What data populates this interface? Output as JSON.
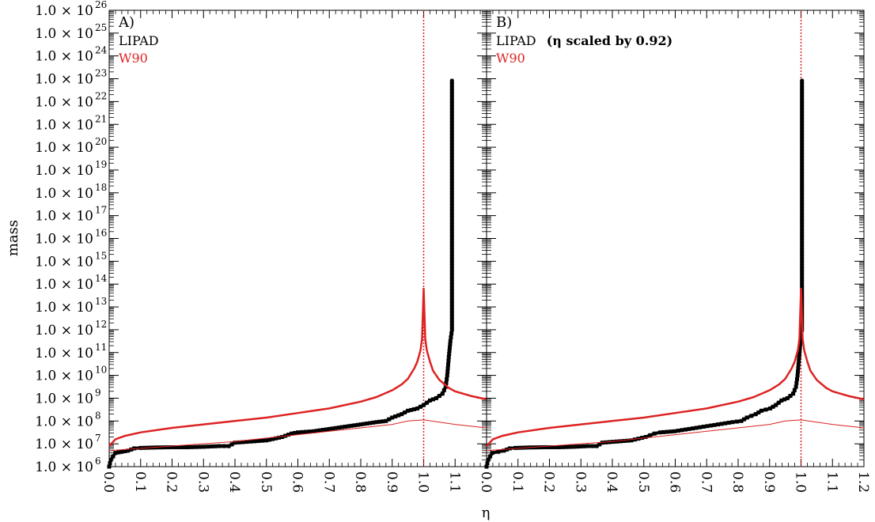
{
  "chart_data": [
    {
      "panel": "A",
      "type": "line",
      "title": "",
      "xlabel": "η",
      "ylabel": "mass",
      "xlim": [
        0.0,
        1.2
      ],
      "ylim_log10": [
        6,
        26
      ],
      "y_scale": "log",
      "grid": false,
      "legend_placement": "top-left",
      "panel_label": "A)",
      "legend": [
        {
          "label": "LIPAD",
          "color": "#000000"
        },
        {
          "label": "W90",
          "color": "#dd2222"
        }
      ],
      "x_tick_labels": [
        "0.0",
        "0.1",
        "0.2",
        "0.3",
        "0.4",
        "0.5",
        "0.6",
        "0.7",
        "0.8",
        "0.9",
        "1.0",
        "1.1"
      ],
      "y_tick_labels": [
        {
          "base": "1.0 × 10",
          "exp": "6"
        },
        {
          "base": "1.0 × 10",
          "exp": "7"
        },
        {
          "base": "1.0 × 10",
          "exp": "8"
        },
        {
          "base": "1.0 × 10",
          "exp": "9"
        },
        {
          "base": "1.0 × 10",
          "exp": "10"
        },
        {
          "base": "1.0 × 10",
          "exp": "11"
        },
        {
          "base": "1.0 × 10",
          "exp": "12"
        },
        {
          "base": "1.0 × 10",
          "exp": "13"
        },
        {
          "base": "1.0 × 10",
          "exp": "14"
        },
        {
          "base": "1.0 × 10",
          "exp": "15"
        },
        {
          "base": "1.0 × 10",
          "exp": "16"
        },
        {
          "base": "1.0 × 10",
          "exp": "17"
        },
        {
          "base": "1.0 × 10",
          "exp": "18"
        },
        {
          "base": "1.0 × 10",
          "exp": "19"
        },
        {
          "base": "1.0 × 10",
          "exp": "20"
        },
        {
          "base": "1.0 × 10",
          "exp": "21"
        },
        {
          "base": "1.0 × 10",
          "exp": "22"
        },
        {
          "base": "1.0 × 10",
          "exp": "23"
        },
        {
          "base": "1.0 × 10",
          "exp": "24"
        },
        {
          "base": "1.0 × 10",
          "exp": "25"
        },
        {
          "base": "1.0 × 10",
          "exp": "26"
        }
      ],
      "reference_line": {
        "x": 1.0,
        "color": "#dd2222",
        "style": "dotted"
      },
      "series": [
        {
          "name": "LIPAD",
          "color": "#000000",
          "style": "thick-markers",
          "x": [
            0.0,
            0.005,
            0.02,
            0.04,
            0.06,
            0.08,
            0.1,
            0.15,
            0.2,
            0.25,
            0.3,
            0.35,
            0.38,
            0.4,
            0.45,
            0.5,
            0.55,
            0.58,
            0.6,
            0.65,
            0.7,
            0.75,
            0.8,
            0.85,
            0.88,
            0.9,
            0.93,
            0.95,
            0.98,
            1.0,
            1.02,
            1.04,
            1.06,
            1.07,
            1.075,
            1.08,
            1.085,
            1.09,
            1.09
          ],
          "log10_y": [
            6.0,
            6.3,
            6.6,
            6.65,
            6.7,
            6.8,
            6.82,
            6.84,
            6.85,
            6.85,
            6.87,
            6.9,
            6.9,
            7.05,
            7.1,
            7.15,
            7.3,
            7.45,
            7.5,
            7.55,
            7.65,
            7.75,
            7.85,
            7.95,
            8.0,
            8.15,
            8.3,
            8.45,
            8.55,
            8.7,
            8.9,
            9.0,
            9.2,
            9.5,
            10.0,
            10.8,
            11.5,
            12.0,
            23.0
          ]
        },
        {
          "name": "W90",
          "color": "#dd2222",
          "style": "thick-line",
          "function": "cumulative",
          "x": [
            0.0,
            0.02,
            0.05,
            0.1,
            0.2,
            0.3,
            0.4,
            0.5,
            0.6,
            0.7,
            0.8,
            0.85,
            0.9,
            0.93,
            0.95,
            0.97,
            0.98,
            0.99,
            0.995,
            1.0,
            1.005,
            1.01,
            1.02,
            1.03,
            1.05,
            1.08,
            1.1,
            1.15,
            1.2
          ],
          "log10_y": [
            6.9,
            7.2,
            7.35,
            7.5,
            7.7,
            7.85,
            8.0,
            8.15,
            8.35,
            8.55,
            8.85,
            9.05,
            9.35,
            9.6,
            9.85,
            10.3,
            10.6,
            11.1,
            11.6,
            13.8,
            11.6,
            11.1,
            10.6,
            10.2,
            9.8,
            9.45,
            9.3,
            9.1,
            8.95
          ]
        },
        {
          "name": "W90",
          "color": "#dd2222",
          "style": "thin-line",
          "function": "differential",
          "x": [
            0.0,
            0.1,
            0.2,
            0.3,
            0.4,
            0.5,
            0.6,
            0.7,
            0.8,
            0.9,
            0.95,
            1.0,
            1.05,
            1.1,
            1.2
          ],
          "log10_y": [
            6.7,
            6.8,
            6.9,
            7.0,
            7.1,
            7.25,
            7.4,
            7.55,
            7.7,
            7.85,
            8.0,
            8.05,
            7.95,
            7.85,
            7.7
          ]
        }
      ]
    },
    {
      "panel": "B",
      "type": "line",
      "title": "",
      "xlabel": "η",
      "ylabel": "",
      "xlim": [
        0.0,
        1.2
      ],
      "ylim_log10": [
        6,
        26
      ],
      "y_scale": "log",
      "grid": false,
      "legend_placement": "top-left",
      "panel_label": "B)",
      "legend": [
        {
          "label_prefix": "LIPAD",
          "label_mid": "(η scaled by 0.92)",
          "color": "#000000"
        },
        {
          "label": "W90",
          "color": "#dd2222"
        }
      ],
      "x_tick_labels": [
        "0.0",
        "0.1",
        "0.2",
        "0.3",
        "0.4",
        "0.5",
        "0.6",
        "0.7",
        "0.8",
        "0.9",
        "1.0",
        "1.1",
        "1.2"
      ],
      "reference_line": {
        "x": 1.0,
        "color": "#dd2222",
        "style": "dotted"
      },
      "series": [
        {
          "name": "LIPAD",
          "color": "#000000",
          "style": "thick-markers",
          "x": [
            0.0,
            0.005,
            0.018,
            0.037,
            0.055,
            0.074,
            0.092,
            0.138,
            0.184,
            0.23,
            0.276,
            0.322,
            0.35,
            0.368,
            0.414,
            0.46,
            0.506,
            0.534,
            0.552,
            0.598,
            0.644,
            0.69,
            0.736,
            0.782,
            0.81,
            0.828,
            0.856,
            0.874,
            0.902,
            0.92,
            0.938,
            0.957,
            0.975,
            0.984,
            0.989,
            0.994,
            0.998,
            1.003,
            1.003
          ],
          "log10_y": [
            6.0,
            6.3,
            6.6,
            6.65,
            6.7,
            6.8,
            6.82,
            6.84,
            6.85,
            6.85,
            6.87,
            6.9,
            6.9,
            7.05,
            7.1,
            7.15,
            7.3,
            7.45,
            7.5,
            7.55,
            7.65,
            7.75,
            7.85,
            7.95,
            8.0,
            8.15,
            8.3,
            8.45,
            8.55,
            8.7,
            8.9,
            9.0,
            9.2,
            9.5,
            10.0,
            10.8,
            11.5,
            12.0,
            23.0
          ]
        },
        {
          "name": "W90",
          "color": "#dd2222",
          "style": "thick-line",
          "function": "cumulative",
          "x": [
            0.0,
            0.02,
            0.05,
            0.1,
            0.2,
            0.3,
            0.4,
            0.5,
            0.6,
            0.7,
            0.8,
            0.85,
            0.9,
            0.93,
            0.95,
            0.97,
            0.98,
            0.99,
            0.995,
            1.0,
            1.005,
            1.01,
            1.02,
            1.03,
            1.05,
            1.08,
            1.1,
            1.15,
            1.2
          ],
          "log10_y": [
            6.9,
            7.2,
            7.35,
            7.5,
            7.7,
            7.85,
            8.0,
            8.15,
            8.35,
            8.55,
            8.85,
            9.05,
            9.35,
            9.6,
            9.85,
            10.3,
            10.6,
            11.1,
            11.6,
            13.8,
            11.6,
            11.1,
            10.6,
            10.2,
            9.8,
            9.45,
            9.3,
            9.1,
            8.95
          ]
        },
        {
          "name": "W90",
          "color": "#dd2222",
          "style": "thin-line",
          "function": "differential",
          "x": [
            0.0,
            0.1,
            0.2,
            0.3,
            0.4,
            0.5,
            0.6,
            0.7,
            0.8,
            0.9,
            0.95,
            1.0,
            1.05,
            1.1,
            1.2
          ],
          "log10_y": [
            6.7,
            6.8,
            6.9,
            7.0,
            7.1,
            7.25,
            7.4,
            7.55,
            7.7,
            7.85,
            8.0,
            8.05,
            7.95,
            7.85,
            7.7
          ]
        }
      ]
    }
  ]
}
